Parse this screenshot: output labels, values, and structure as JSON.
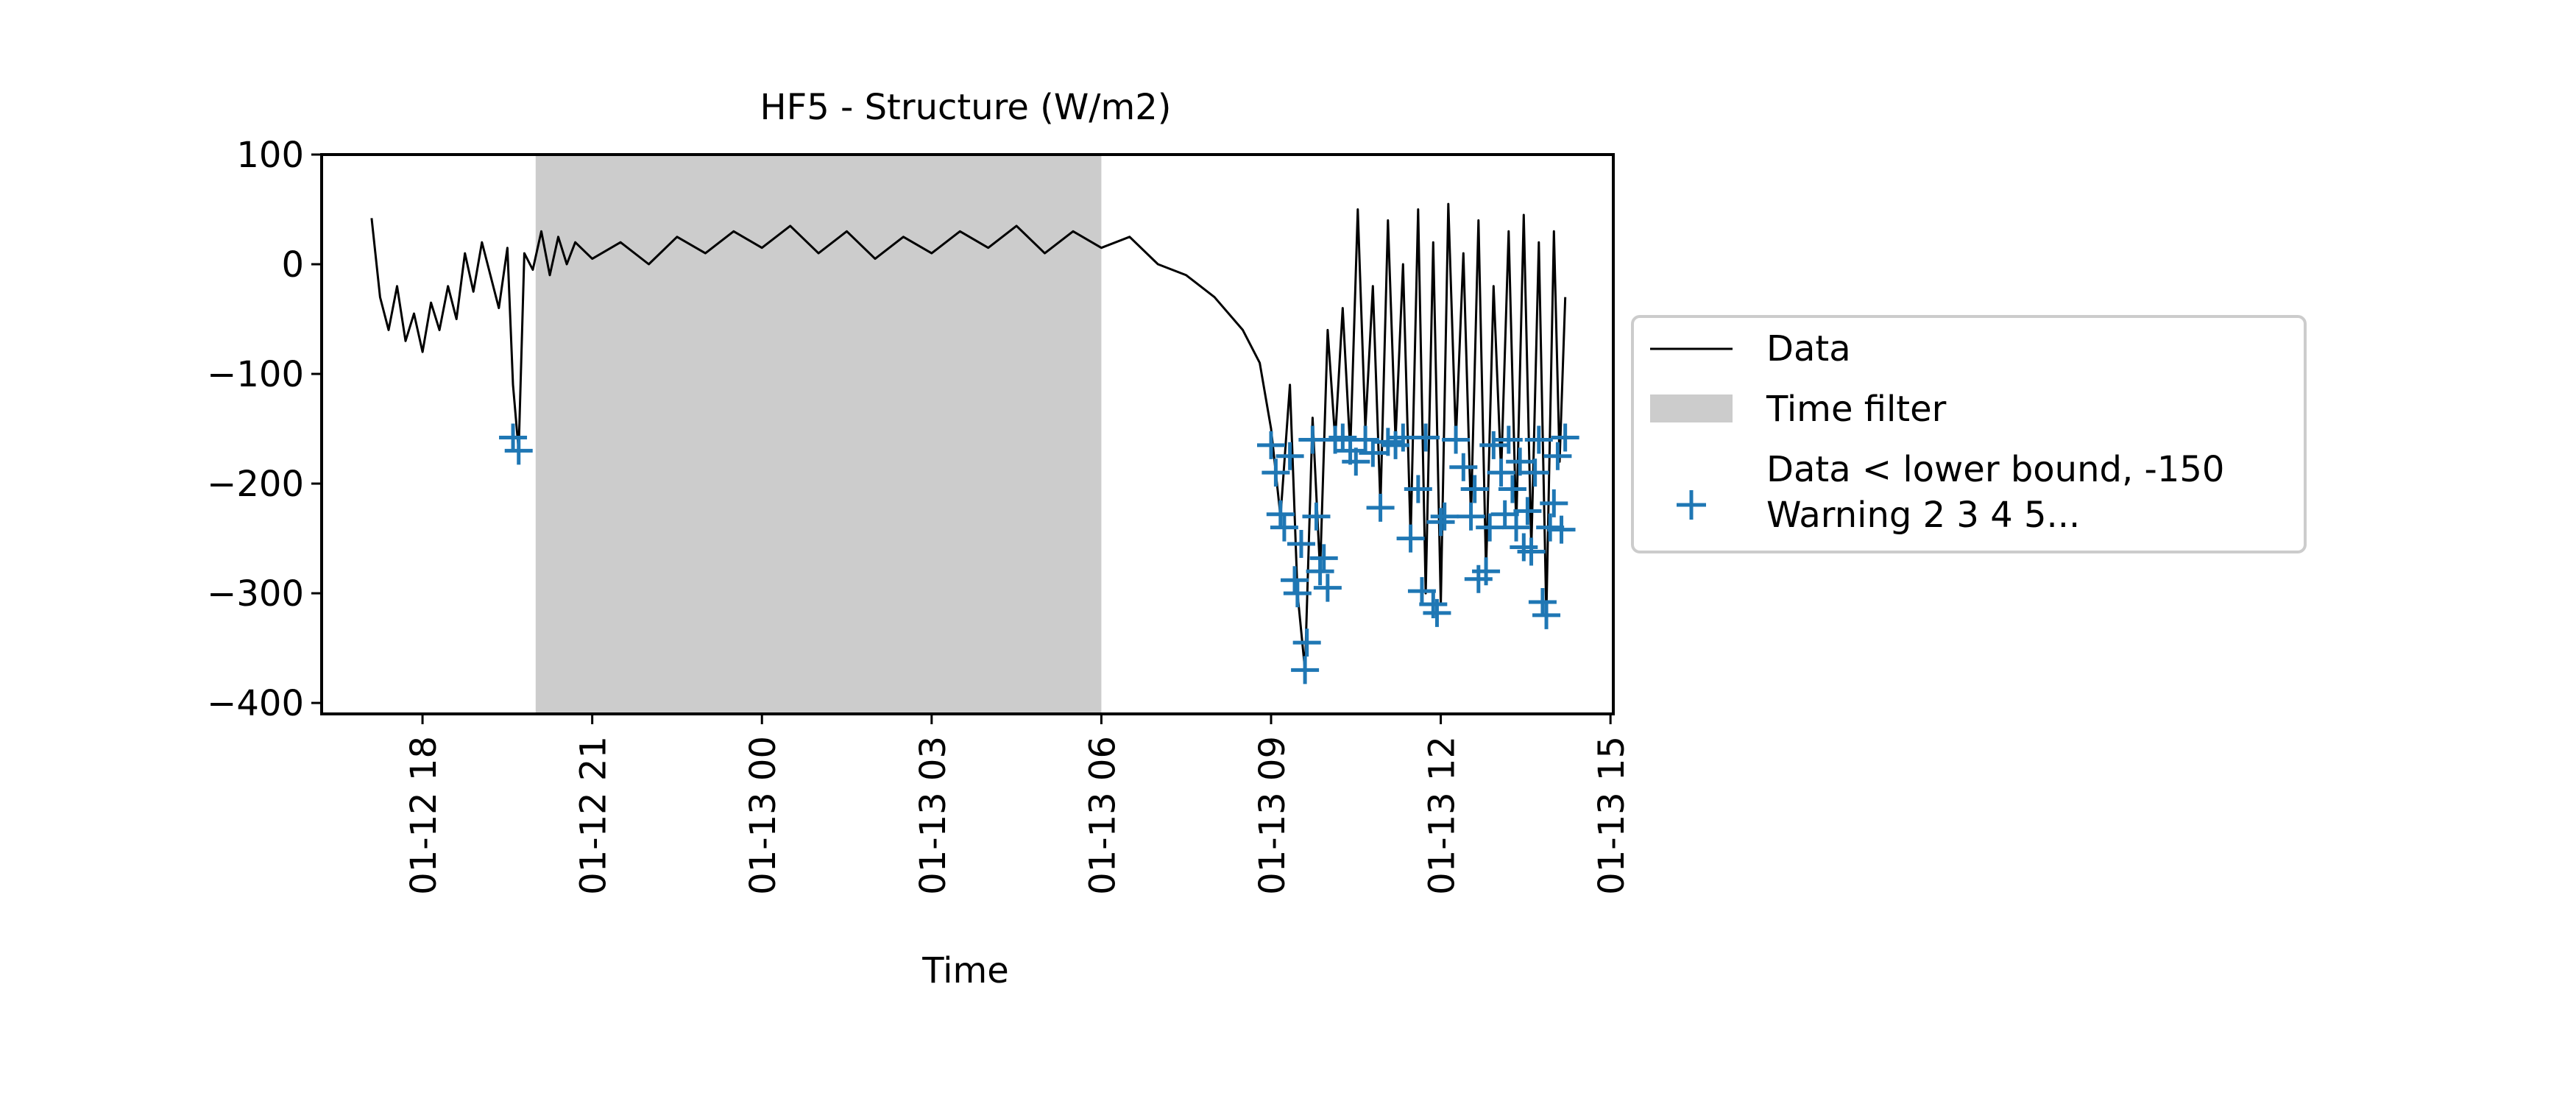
{
  "chart_data": {
    "type": "line",
    "title": "HF5 - Structure (W/m2)",
    "xlabel": "Time",
    "ylabel": "",
    "xlim": [
      "2024-01-12 16:13",
      "2024-01-13 15:03"
    ],
    "ylim": [
      -410,
      100
    ],
    "x_tick_labels": [
      {
        "label": "01-12 18",
        "time": "2024-01-12 18:00"
      },
      {
        "label": "01-12 21",
        "time": "2024-01-12 21:00"
      },
      {
        "label": "01-13 00",
        "time": "2024-01-13 00:00"
      },
      {
        "label": "01-13 03",
        "time": "2024-01-13 03:00"
      },
      {
        "label": "01-13 06",
        "time": "2024-01-13 06:00"
      },
      {
        "label": "01-13 09",
        "time": "2024-01-13 09:00"
      },
      {
        "label": "01-13 12",
        "time": "2024-01-13 12:00"
      },
      {
        "label": "01-13 15",
        "time": "2024-01-13 15:00"
      }
    ],
    "y_tick_labels": [
      {
        "label": "100",
        "value": 100
      },
      {
        "label": "0",
        "value": 0
      },
      {
        "label": "−100",
        "value": -100
      },
      {
        "label": "−200",
        "value": -200
      },
      {
        "label": "−300",
        "value": -300
      },
      {
        "label": "−400",
        "value": -400
      }
    ],
    "grid": false,
    "legend_position": "center-right, outside the axes",
    "time_filter": {
      "start": "2024-01-12 20:00",
      "end": "2024-01-13 06:00",
      "color": "#cccccc"
    },
    "series": [
      {
        "name": "Data",
        "kind": "line",
        "color": "#000000",
        "points": [
          [
            "2024-01-12 17:06",
            42
          ],
          [
            "2024-01-12 17:15",
            -30
          ],
          [
            "2024-01-12 17:24",
            -60
          ],
          [
            "2024-01-12 17:33",
            -20
          ],
          [
            "2024-01-12 17:42",
            -70
          ],
          [
            "2024-01-12 17:51",
            -45
          ],
          [
            "2024-01-12 18:00",
            -80
          ],
          [
            "2024-01-12 18:09",
            -35
          ],
          [
            "2024-01-12 18:18",
            -60
          ],
          [
            "2024-01-12 18:27",
            -20
          ],
          [
            "2024-01-12 18:36",
            -50
          ],
          [
            "2024-01-12 18:45",
            10
          ],
          [
            "2024-01-12 18:54",
            -25
          ],
          [
            "2024-01-12 19:03",
            20
          ],
          [
            "2024-01-12 19:12",
            -10
          ],
          [
            "2024-01-12 19:21",
            -40
          ],
          [
            "2024-01-12 19:30",
            15
          ],
          [
            "2024-01-12 19:36",
            -110
          ],
          [
            "2024-01-12 19:42",
            -170
          ],
          [
            "2024-01-12 19:48",
            10
          ],
          [
            "2024-01-12 19:57",
            -5
          ],
          [
            "2024-01-12 20:06",
            30
          ],
          [
            "2024-01-12 20:15",
            -10
          ],
          [
            "2024-01-12 20:24",
            25
          ],
          [
            "2024-01-12 20:33",
            0
          ],
          [
            "2024-01-12 20:42",
            20
          ],
          [
            "2024-01-12 21:00",
            5
          ],
          [
            "2024-01-12 21:30",
            20
          ],
          [
            "2024-01-12 22:00",
            0
          ],
          [
            "2024-01-12 22:30",
            25
          ],
          [
            "2024-01-12 23:00",
            10
          ],
          [
            "2024-01-12 23:30",
            30
          ],
          [
            "2024-01-13 00:00",
            15
          ],
          [
            "2024-01-13 00:30",
            35
          ],
          [
            "2024-01-13 01:00",
            10
          ],
          [
            "2024-01-13 01:30",
            30
          ],
          [
            "2024-01-13 02:00",
            5
          ],
          [
            "2024-01-13 02:30",
            25
          ],
          [
            "2024-01-13 03:00",
            10
          ],
          [
            "2024-01-13 03:30",
            30
          ],
          [
            "2024-01-13 04:00",
            15
          ],
          [
            "2024-01-13 04:30",
            35
          ],
          [
            "2024-01-13 05:00",
            10
          ],
          [
            "2024-01-13 05:30",
            30
          ],
          [
            "2024-01-13 06:00",
            15
          ],
          [
            "2024-01-13 06:30",
            25
          ],
          [
            "2024-01-13 07:00",
            0
          ],
          [
            "2024-01-13 07:30",
            -10
          ],
          [
            "2024-01-13 08:00",
            -30
          ],
          [
            "2024-01-13 08:30",
            -60
          ],
          [
            "2024-01-13 08:48",
            -90
          ],
          [
            "2024-01-13 09:00",
            -150
          ],
          [
            "2024-01-13 09:10",
            -230
          ],
          [
            "2024-01-13 09:20",
            -110
          ],
          [
            "2024-01-13 09:28",
            -300
          ],
          [
            "2024-01-13 09:36",
            -370
          ],
          [
            "2024-01-13 09:44",
            -140
          ],
          [
            "2024-01-13 09:52",
            -280
          ],
          [
            "2024-01-13 10:00",
            -60
          ],
          [
            "2024-01-13 10:08",
            -160
          ],
          [
            "2024-01-13 10:16",
            -40
          ],
          [
            "2024-01-13 10:24",
            -170
          ],
          [
            "2024-01-13 10:32",
            50
          ],
          [
            "2024-01-13 10:40",
            -150
          ],
          [
            "2024-01-13 10:48",
            -20
          ],
          [
            "2024-01-13 10:56",
            -220
          ],
          [
            "2024-01-13 11:04",
            40
          ],
          [
            "2024-01-13 11:12",
            -160
          ],
          [
            "2024-01-13 11:20",
            0
          ],
          [
            "2024-01-13 11:28",
            -250
          ],
          [
            "2024-01-13 11:36",
            50
          ],
          [
            "2024-01-13 11:44",
            -300
          ],
          [
            "2024-01-13 11:52",
            20
          ],
          [
            "2024-01-13 12:00",
            -310
          ],
          [
            "2024-01-13 12:08",
            55
          ],
          [
            "2024-01-13 12:16",
            -160
          ],
          [
            "2024-01-13 12:24",
            10
          ],
          [
            "2024-01-13 12:32",
            -230
          ],
          [
            "2024-01-13 12:40",
            40
          ],
          [
            "2024-01-13 12:48",
            -280
          ],
          [
            "2024-01-13 12:56",
            -20
          ],
          [
            "2024-01-13 13:04",
            -190
          ],
          [
            "2024-01-13 13:12",
            30
          ],
          [
            "2024-01-13 13:20",
            -240
          ],
          [
            "2024-01-13 13:28",
            45
          ],
          [
            "2024-01-13 13:36",
            -260
          ],
          [
            "2024-01-13 13:44",
            20
          ],
          [
            "2024-01-13 13:52",
            -320
          ],
          [
            "2024-01-13 14:00",
            30
          ],
          [
            "2024-01-13 14:06",
            -180
          ],
          [
            "2024-01-13 14:12",
            -30
          ]
        ]
      },
      {
        "name": "Data < lower bound, -150\nWarning 2 3 4 5...",
        "kind": "marker",
        "marker": "+",
        "color": "#1f77b4",
        "points": [
          [
            "2024-01-12 19:36",
            -158
          ],
          [
            "2024-01-12 19:42",
            -170
          ],
          [
            "2024-01-13 09:00",
            -165
          ],
          [
            "2024-01-13 09:05",
            -190
          ],
          [
            "2024-01-13 09:10",
            -228
          ],
          [
            "2024-01-13 09:14",
            -240
          ],
          [
            "2024-01-13 09:20",
            -175
          ],
          [
            "2024-01-13 09:25",
            -288
          ],
          [
            "2024-01-13 09:28",
            -300
          ],
          [
            "2024-01-13 09:32",
            -255
          ],
          [
            "2024-01-13 09:36",
            -370
          ],
          [
            "2024-01-13 09:38",
            -345
          ],
          [
            "2024-01-13 09:44",
            -160
          ],
          [
            "2024-01-13 09:48",
            -230
          ],
          [
            "2024-01-13 09:52",
            -280
          ],
          [
            "2024-01-13 09:56",
            -268
          ],
          [
            "2024-01-13 10:00",
            -295
          ],
          [
            "2024-01-13 10:08",
            -160
          ],
          [
            "2024-01-13 10:16",
            -158
          ],
          [
            "2024-01-13 10:24",
            -170
          ],
          [
            "2024-01-13 10:30",
            -180
          ],
          [
            "2024-01-13 10:40",
            -160
          ],
          [
            "2024-01-13 10:48",
            -172
          ],
          [
            "2024-01-13 10:56",
            -222
          ],
          [
            "2024-01-13 11:04",
            -162
          ],
          [
            "2024-01-13 11:12",
            -165
          ],
          [
            "2024-01-13 11:20",
            -158
          ],
          [
            "2024-01-13 11:28",
            -250
          ],
          [
            "2024-01-13 11:36",
            -205
          ],
          [
            "2024-01-13 11:40",
            -298
          ],
          [
            "2024-01-13 11:44",
            -158
          ],
          [
            "2024-01-13 11:52",
            -310
          ],
          [
            "2024-01-13 11:56",
            -318
          ],
          [
            "2024-01-13 12:00",
            -235
          ],
          [
            "2024-01-13 12:04",
            -230
          ],
          [
            "2024-01-13 12:16",
            -160
          ],
          [
            "2024-01-13 12:24",
            -185
          ],
          [
            "2024-01-13 12:32",
            -230
          ],
          [
            "2024-01-13 12:36",
            -205
          ],
          [
            "2024-01-13 12:40",
            -287
          ],
          [
            "2024-01-13 12:48",
            -280
          ],
          [
            "2024-01-13 12:52",
            -240
          ],
          [
            "2024-01-13 12:56",
            -165
          ],
          [
            "2024-01-13 13:04",
            -190
          ],
          [
            "2024-01-13 13:08",
            -228
          ],
          [
            "2024-01-13 13:12",
            -160
          ],
          [
            "2024-01-13 13:16",
            -205
          ],
          [
            "2024-01-13 13:20",
            -240
          ],
          [
            "2024-01-13 13:24",
            -180
          ],
          [
            "2024-01-13 13:28",
            -258
          ],
          [
            "2024-01-13 13:32",
            -225
          ],
          [
            "2024-01-13 13:36",
            -262
          ],
          [
            "2024-01-13 13:40",
            -190
          ],
          [
            "2024-01-13 13:44",
            -160
          ],
          [
            "2024-01-13 13:48",
            -308
          ],
          [
            "2024-01-13 13:52",
            -320
          ],
          [
            "2024-01-13 13:56",
            -240
          ],
          [
            "2024-01-13 14:00",
            -218
          ],
          [
            "2024-01-13 14:04",
            -175
          ],
          [
            "2024-01-13 14:08",
            -242
          ],
          [
            "2024-01-13 14:12",
            -158
          ]
        ]
      }
    ],
    "legend": [
      {
        "kind": "line",
        "label": "Data",
        "color": "#000000"
      },
      {
        "kind": "patch",
        "label": "Time filter",
        "color": "#cccccc"
      },
      {
        "kind": "marker",
        "label_lines": [
          "Data < lower bound, -150",
          "Warning 2 3 4 5..."
        ],
        "color": "#1f77b4"
      }
    ]
  }
}
